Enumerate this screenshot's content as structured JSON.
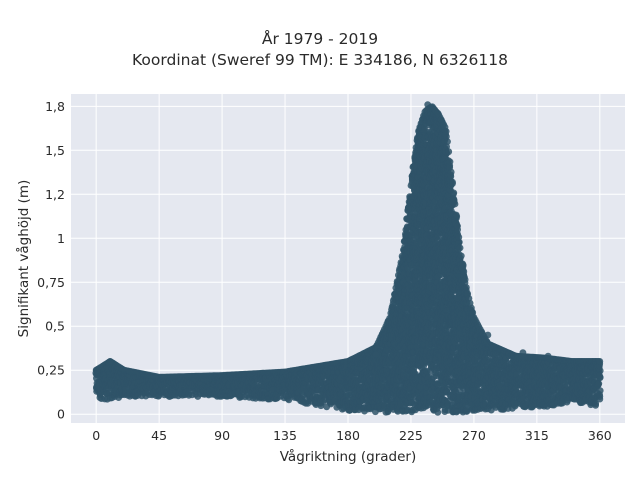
{
  "chart_data": {
    "type": "scatter",
    "title": "År 1979 - 2019",
    "subtitle": "Koordinat (Sweref 99 TM): E 334186, N 6326118",
    "xlabel": "Vågriktning (grader)",
    "ylabel": "Signifikant våghöjd (m)",
    "xlim": [
      -18,
      378
    ],
    "ylim": [
      -0.05,
      1.82
    ],
    "xticks": [
      0,
      45,
      90,
      135,
      180,
      225,
      270,
      315,
      360
    ],
    "xtick_labels": [
      "0",
      "45",
      "90",
      "135",
      "180",
      "225",
      "270",
      "315",
      "360"
    ],
    "yticks": [
      0,
      0.25,
      0.5,
      0.75,
      1,
      1.25,
      1.5,
      1.75
    ],
    "ytick_labels": [
      "0",
      "0,25",
      "0,5",
      "0,75",
      "1",
      "1,2",
      "1,5",
      "1,8"
    ],
    "grid": true,
    "background": "#e5e8f0",
    "marker_color": "#2f5468",
    "envelope": {
      "x": [
        0,
        10,
        20,
        45,
        90,
        135,
        180,
        200,
        210,
        220,
        225,
        230,
        235,
        240,
        245,
        250,
        255,
        260,
        265,
        270,
        280,
        300,
        320,
        340,
        360
      ],
      "y_max": [
        0.25,
        0.3,
        0.25,
        0.21,
        0.22,
        0.24,
        0.3,
        0.38,
        0.55,
        0.95,
        1.3,
        1.6,
        1.72,
        1.75,
        1.7,
        1.62,
        1.3,
        0.95,
        0.7,
        0.55,
        0.4,
        0.33,
        0.32,
        0.3,
        0.3
      ],
      "y_min": [
        0.09,
        0.08,
        0.1,
        0.1,
        0.1,
        0.08,
        0.02,
        0.01,
        0.01,
        0.01,
        0.01,
        0.01,
        0.01,
        0.01,
        0.01,
        0.01,
        0.01,
        0.01,
        0.01,
        0.01,
        0.02,
        0.03,
        0.04,
        0.06,
        0.05
      ]
    },
    "outliers": [
      {
        "x": 10,
        "y": 0.3
      },
      {
        "x": 200,
        "y": 0.34
      },
      {
        "x": 237,
        "y": 1.76
      },
      {
        "x": 258,
        "y": 0.66
      },
      {
        "x": 280,
        "y": 0.45
      },
      {
        "x": 305,
        "y": 0.35
      },
      {
        "x": 323,
        "y": 0.33
      },
      {
        "x": 357,
        "y": 0.05
      }
    ]
  }
}
